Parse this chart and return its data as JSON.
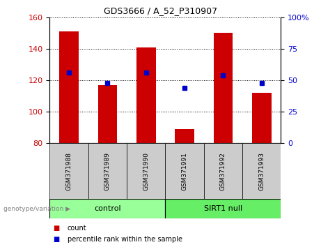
{
  "title": "GDS3666 / A_52_P310907",
  "samples": [
    "GSM371988",
    "GSM371989",
    "GSM371990",
    "GSM371991",
    "GSM371992",
    "GSM371993"
  ],
  "counts": [
    151,
    117,
    141,
    89,
    150,
    112
  ],
  "percentiles": [
    56,
    48,
    56,
    44,
    54,
    48
  ],
  "ylim_left": [
    80,
    160
  ],
  "ylim_right": [
    0,
    100
  ],
  "yticks_left": [
    80,
    100,
    120,
    140,
    160
  ],
  "yticks_right": [
    0,
    25,
    50,
    75,
    100
  ],
  "ytick_labels_right": [
    "0",
    "25",
    "50",
    "75",
    "100%"
  ],
  "bar_color": "#cc0000",
  "dot_color": "#0000cc",
  "bar_width": 0.5,
  "groups": [
    {
      "label": "control",
      "indices": [
        0,
        1,
        2
      ],
      "color": "#99ff99"
    },
    {
      "label": "SIRT1 null",
      "indices": [
        3,
        4,
        5
      ],
      "color": "#66ee66"
    }
  ],
  "group_label_prefix": "genotype/variation",
  "legend_count_label": "count",
  "legend_pct_label": "percentile rank within the sample",
  "tick_area_color": "#cccccc",
  "grid_linestyle": "dotted"
}
